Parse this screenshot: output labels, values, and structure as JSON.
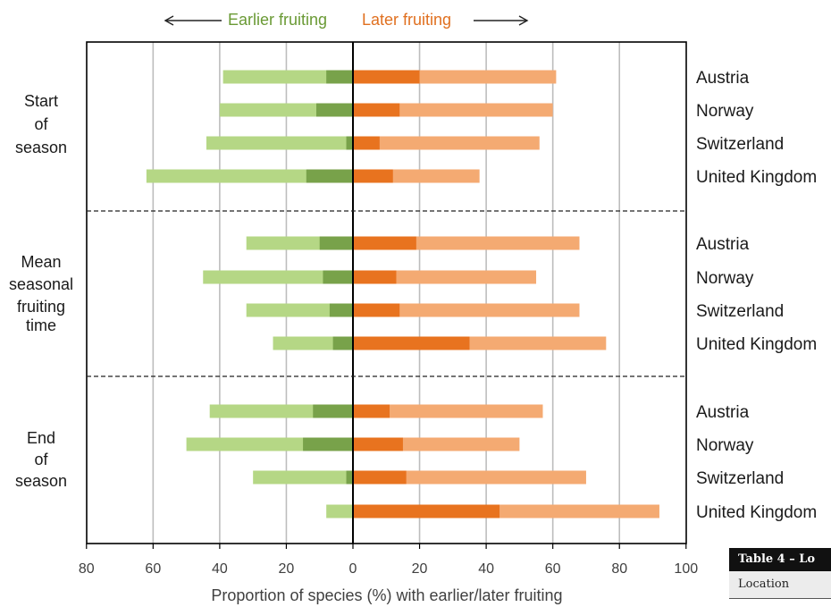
{
  "chart_data": {
    "type": "bar",
    "orientation": "horizontal-diverging",
    "xlabel": "Proportion of species (%) with earlier/later fruiting",
    "x_ticks": [
      "80",
      "60",
      "40",
      "20",
      "0",
      "20",
      "40",
      "60",
      "80",
      "100"
    ],
    "xlim": [
      -80,
      100
    ],
    "grid": true,
    "header_left": "Earlier fruiting",
    "header_right": "Later fruiting",
    "colors": {
      "earlier_light": "#b5d785",
      "earlier_dark": "#78a24a",
      "later_dark": "#e8731f",
      "later_light": "#f4aa72",
      "header_left": "#6a9a35",
      "header_right": "#e07020"
    },
    "groups": [
      {
        "label": [
          "Start",
          "of",
          "season"
        ],
        "rows": [
          {
            "country": "Austria",
            "earlier_total": 39,
            "earlier_dark": 8,
            "later_dark": 20,
            "later_total": 61
          },
          {
            "country": "Norway",
            "earlier_total": 40,
            "earlier_dark": 11,
            "later_dark": 14,
            "later_total": 60
          },
          {
            "country": "Switzerland",
            "earlier_total": 44,
            "earlier_dark": 2,
            "later_dark": 8,
            "later_total": 56
          },
          {
            "country": "United Kingdom",
            "earlier_total": 62,
            "earlier_dark": 14,
            "later_dark": 12,
            "later_total": 38
          }
        ]
      },
      {
        "label": [
          "Mean",
          "seasonal",
          "fruiting",
          "time"
        ],
        "rows": [
          {
            "country": "Austria",
            "earlier_total": 32,
            "earlier_dark": 10,
            "later_dark": 19,
            "later_total": 68
          },
          {
            "country": "Norway",
            "earlier_total": 45,
            "earlier_dark": 9,
            "later_dark": 13,
            "later_total": 55
          },
          {
            "country": "Switzerland",
            "earlier_total": 32,
            "earlier_dark": 7,
            "later_dark": 14,
            "later_total": 68
          },
          {
            "country": "United Kingdom",
            "earlier_total": 24,
            "earlier_dark": 6,
            "later_dark": 35,
            "later_total": 76
          }
        ]
      },
      {
        "label": [
          "End",
          "of",
          "season"
        ],
        "rows": [
          {
            "country": "Austria",
            "earlier_total": 43,
            "earlier_dark": 12,
            "later_dark": 11,
            "later_total": 57
          },
          {
            "country": "Norway",
            "earlier_total": 50,
            "earlier_dark": 15,
            "later_dark": 15,
            "later_total": 50
          },
          {
            "country": "Switzerland",
            "earlier_total": 30,
            "earlier_dark": 2,
            "later_dark": 16,
            "later_total": 70
          },
          {
            "country": "United Kingdom",
            "earlier_total": 8,
            "earlier_dark": 0,
            "later_dark": 44,
            "later_total": 92
          }
        ]
      }
    ]
  },
  "table_snippet": {
    "title": "Table 4 – Lo",
    "column": "Location"
  }
}
